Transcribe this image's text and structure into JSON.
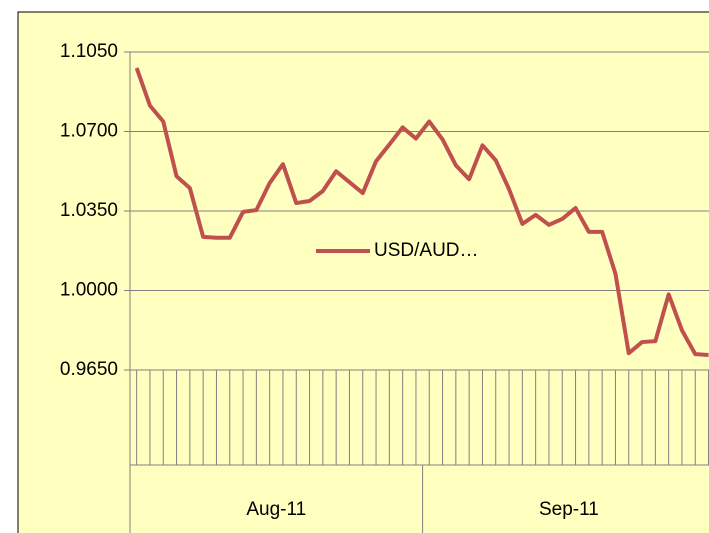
{
  "chart_data": {
    "type": "line",
    "categories": [
      null,
      null,
      null,
      null,
      null,
      null,
      null,
      null,
      null,
      null,
      null,
      null,
      null,
      null,
      null,
      null,
      null,
      null,
      null,
      null,
      null,
      null,
      null,
      null,
      null,
      null,
      null,
      null,
      null,
      null,
      null,
      null,
      null,
      null,
      null,
      null,
      null,
      null,
      null,
      null,
      null,
      null,
      null,
      null
    ],
    "groups": [
      {
        "label": "Aug-11",
        "count": 22
      },
      {
        "label": "Sep-11",
        "count": 22
      }
    ],
    "series": [
      {
        "name": "USD/AUD…",
        "color": "#c0504d",
        "values": [
          1.098,
          1.0814,
          1.0744,
          1.0503,
          1.0451,
          1.0236,
          1.0232,
          1.0232,
          1.0346,
          1.0354,
          1.0473,
          1.0556,
          1.0385,
          1.0394,
          1.0438,
          1.0525,
          1.0477,
          1.0429,
          1.0569,
          1.0643,
          1.0718,
          1.0669,
          1.0744,
          1.0665,
          1.0551,
          1.049,
          1.0639,
          1.0573,
          1.0446,
          1.0293,
          1.0333,
          1.0289,
          1.0315,
          1.0363,
          1.0258,
          1.0258,
          1.0074,
          0.9724,
          0.9773,
          0.9777,
          0.9983,
          0.9825,
          0.972,
          0.9716
        ]
      }
    ],
    "ylim": [
      0.965,
      1.105
    ],
    "yticks": [
      {
        "value": 0.965,
        "label": "0.9650"
      },
      {
        "value": 1.0,
        "label": "1.0000"
      },
      {
        "value": 1.035,
        "label": "1.0350"
      },
      {
        "value": 1.07,
        "label": "1.0700"
      },
      {
        "value": 1.105,
        "label": "1.1050"
      }
    ],
    "grid": true,
    "legend": "center"
  }
}
